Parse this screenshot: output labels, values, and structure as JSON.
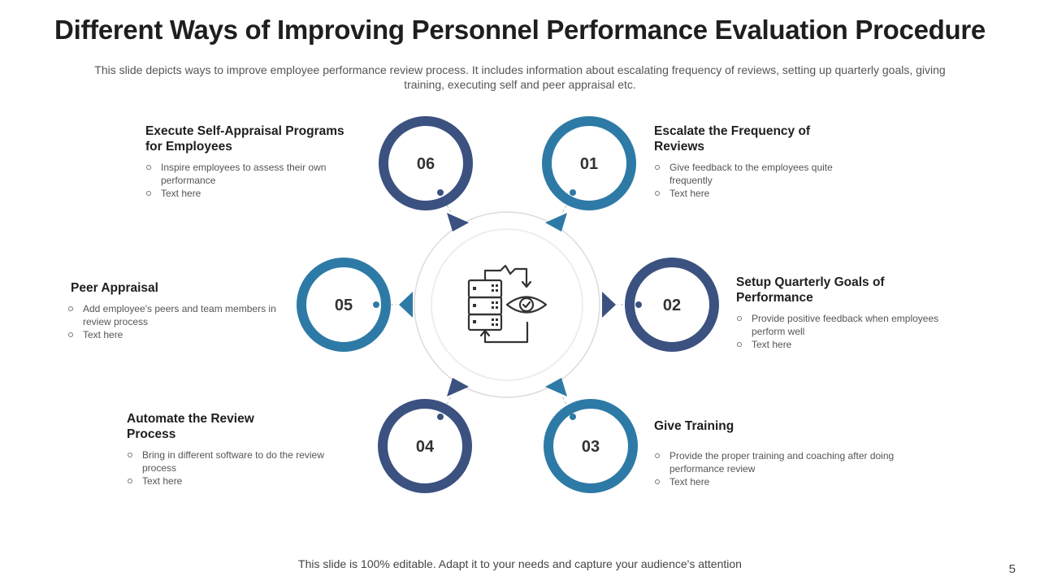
{
  "title": "Different Ways of Improving Personnel Performance Evaluation Procedure",
  "subtitle": "This slide depicts ways to improve employee performance review process. It includes information about escalating frequency of reviews, setting up quarterly goals, giving training, executing self and peer appraisal etc.",
  "colors": {
    "dark_navy": "#3b5180",
    "steel_blue": "#2e7aa6",
    "text_dark": "#1e1e1e",
    "text_muted": "#555555"
  },
  "center_icon": "server-eye-review-icon",
  "steps": [
    {
      "number": "01",
      "title": "Escalate the Frequency of Reviews",
      "points": [
        "Give feedback to the employees quite frequently",
        "Text here"
      ]
    },
    {
      "number": "02",
      "title": "Setup Quarterly Goals of Performance",
      "points": [
        "Provide positive feedback when employees perform well",
        "Text here"
      ]
    },
    {
      "number": "03",
      "title": "Give Training",
      "points": [
        "Provide the proper training and coaching after doing performance review",
        "Text here"
      ]
    },
    {
      "number": "04",
      "title": "Automate the Review Process",
      "points": [
        "Bring in different software to do the review process",
        "Text here"
      ]
    },
    {
      "number": "05",
      "title": "Peer Appraisal",
      "points": [
        "Add employee's peers and team members in review process",
        "Text here"
      ]
    },
    {
      "number": "06",
      "title": "Execute Self-Appraisal Programs for Employees",
      "points": [
        "Inspire employees to assess their own performance",
        "Text here"
      ]
    }
  ],
  "footer": "This slide is 100% editable. Adapt it to your needs and capture your audience's attention",
  "page_number": "5"
}
